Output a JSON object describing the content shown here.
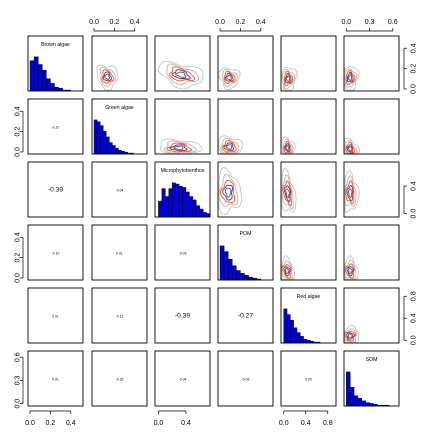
{
  "chart_data": {
    "type": "pairs",
    "title": "",
    "variables": [
      "Brown algae",
      "Green algae",
      "Microphytobenthos",
      "POM",
      "Red algae",
      "SOM"
    ],
    "axis_ticks": [
      {
        "ticks": [
          0.0,
          0.2,
          0.4
        ],
        "labels": [
          "0.0",
          "0.2",
          "0.4"
        ],
        "range": [
          -0.02,
          0.52
        ]
      },
      {
        "ticks": [
          0.0,
          0.2,
          0.4
        ],
        "labels": [
          "0.0",
          "0.2",
          "0.4"
        ],
        "range": [
          -0.02,
          0.52
        ]
      },
      {
        "ticks": [
          0.0,
          0.4
        ],
        "labels": [
          "0.0",
          "0.4"
        ],
        "range": [
          -0.05,
          0.75
        ]
      },
      {
        "ticks": [
          0.0,
          0.2,
          0.4
        ],
        "labels": [
          "0.0",
          "0.2",
          "0.4"
        ],
        "range": [
          -0.02,
          0.52
        ]
      },
      {
        "ticks": [
          0.0,
          0.4,
          0.8
        ],
        "labels": [
          "0.0",
          "0.4",
          "0.8"
        ],
        "range": [
          -0.05,
          0.95
        ]
      },
      {
        "ticks": [
          0.0,
          0.3,
          0.6
        ],
        "labels": [
          "0.0",
          "0.3",
          "0.6"
        ],
        "range": [
          -0.03,
          0.68
        ]
      }
    ],
    "top_axes_columns": [
      1,
      3,
      5
    ],
    "bottom_axes_columns": [
      0,
      2,
      4
    ],
    "right_axes_rows": [
      0,
      2,
      4
    ],
    "left_axes_rows": [
      1,
      3,
      5
    ],
    "histograms": [
      {
        "name": "Brown algae",
        "bin_width": 0.04,
        "bin_start": 0.0,
        "counts": [
          32,
          36,
          28,
          22,
          13,
          8,
          4,
          3,
          1,
          1
        ]
      },
      {
        "name": "Green algae",
        "bin_width": 0.03,
        "bin_start": 0.0,
        "counts": [
          36,
          34,
          30,
          24,
          18,
          12,
          9,
          6,
          4,
          3,
          2,
          1,
          1
        ]
      },
      {
        "name": "Microphytobenthos",
        "bin_width": 0.05,
        "bin_start": 0.0,
        "counts": [
          14,
          25,
          18,
          25,
          30,
          29,
          27,
          26,
          22,
          18,
          15,
          10,
          7,
          4,
          3
        ]
      },
      {
        "name": "POM",
        "bin_width": 0.04,
        "bin_start": 0.0,
        "counts": [
          36,
          30,
          22,
          15,
          10,
          7,
          5,
          3,
          2,
          1
        ]
      },
      {
        "name": "Red algae",
        "bin_width": 0.06,
        "bin_start": 0.0,
        "counts": [
          36,
          30,
          24,
          16,
          11,
          7,
          4,
          3,
          2,
          1,
          1
        ]
      },
      {
        "name": "SOM",
        "bin_width": 0.05,
        "bin_start": 0.0,
        "counts": [
          40,
          22,
          12,
          9,
          6,
          4,
          3,
          2,
          1,
          1,
          1
        ]
      }
    ],
    "correlations": [
      {
        "row": 1,
        "col": 0,
        "value": "-0.10",
        "size": "small"
      },
      {
        "row": 2,
        "col": 0,
        "value": "-0.39",
        "size": "big"
      },
      {
        "row": 2,
        "col": 1,
        "value": "-0.04",
        "size": "small"
      },
      {
        "row": 3,
        "col": 0,
        "value": "-0.10",
        "size": "small"
      },
      {
        "row": 3,
        "col": 1,
        "value": "0.01",
        "size": "small"
      },
      {
        "row": 3,
        "col": 2,
        "value": "-0.03",
        "size": "small"
      },
      {
        "row": 4,
        "col": 0,
        "value": "0.01",
        "size": "small"
      },
      {
        "row": 4,
        "col": 1,
        "value": "-0.11",
        "size": "small"
      },
      {
        "row": 4,
        "col": 2,
        "value": "-0.39",
        "size": "big"
      },
      {
        "row": 4,
        "col": 3,
        "value": "-0.27",
        "size": "big"
      },
      {
        "row": 5,
        "col": 0,
        "value": "0.01",
        "size": "small"
      },
      {
        "row": 5,
        "col": 1,
        "value": "-0.26",
        "size": "small"
      },
      {
        "row": 5,
        "col": 2,
        "value": "-0.04",
        "size": "small"
      },
      {
        "row": 5,
        "col": 3,
        "value": "-0.03",
        "size": "small"
      },
      {
        "row": 5,
        "col": 4,
        "value": "0.00",
        "size": "small"
      }
    ],
    "density_levels": [
      {
        "color": "#9ecae1"
      },
      {
        "color": "#f4a582"
      },
      {
        "color": "#d6604d"
      },
      {
        "color": "#b2182b"
      },
      {
        "color": "#2166ac"
      }
    ],
    "density_panels": [
      {
        "row": 0,
        "col": 1,
        "cx": 0.13,
        "cy": 0.12,
        "sx": 0.05,
        "sy": 0.06,
        "rho": -0.1
      },
      {
        "row": 0,
        "col": 2,
        "cx": 0.33,
        "cy": 0.14,
        "sx": 0.16,
        "sy": 0.06,
        "rho": -0.35
      },
      {
        "row": 0,
        "col": 3,
        "cx": 0.09,
        "cy": 0.11,
        "sx": 0.05,
        "sy": 0.05,
        "rho": -0.1
      },
      {
        "row": 0,
        "col": 4,
        "cx": 0.08,
        "cy": 0.1,
        "sx": 0.07,
        "sy": 0.06,
        "rho": 0.0
      },
      {
        "row": 0,
        "col": 5,
        "cx": 0.05,
        "cy": 0.11,
        "sx": 0.05,
        "sy": 0.06,
        "rho": 0.0
      },
      {
        "row": 1,
        "col": 2,
        "cx": 0.3,
        "cy": 0.04,
        "sx": 0.15,
        "sy": 0.04,
        "rho": -0.05
      },
      {
        "row": 1,
        "col": 3,
        "cx": 0.09,
        "cy": 0.05,
        "sx": 0.06,
        "sy": 0.05,
        "rho": 0.0
      },
      {
        "row": 1,
        "col": 4,
        "cx": 0.07,
        "cy": 0.04,
        "sx": 0.06,
        "sy": 0.05,
        "rho": -0.1
      },
      {
        "row": 1,
        "col": 5,
        "cx": 0.05,
        "cy": 0.03,
        "sx": 0.05,
        "sy": 0.05,
        "rho": -0.25
      },
      {
        "row": 2,
        "col": 3,
        "cx": 0.08,
        "cy": 0.31,
        "sx": 0.06,
        "sy": 0.15,
        "rho": -0.05
      },
      {
        "row": 2,
        "col": 4,
        "cx": 0.07,
        "cy": 0.3,
        "sx": 0.07,
        "sy": 0.15,
        "rho": -0.35
      },
      {
        "row": 2,
        "col": 5,
        "cx": 0.05,
        "cy": 0.3,
        "sx": 0.05,
        "sy": 0.14,
        "rho": -0.05
      },
      {
        "row": 3,
        "col": 4,
        "cx": 0.06,
        "cy": 0.07,
        "sx": 0.07,
        "sy": 0.06,
        "rho": -0.25
      },
      {
        "row": 3,
        "col": 5,
        "cx": 0.05,
        "cy": 0.07,
        "sx": 0.05,
        "sy": 0.06,
        "rho": -0.05
      },
      {
        "row": 4,
        "col": 5,
        "cx": 0.05,
        "cy": 0.08,
        "sx": 0.06,
        "sy": 0.08,
        "rho": 0.0
      }
    ],
    "xlabel": "",
    "ylabel": ""
  }
}
